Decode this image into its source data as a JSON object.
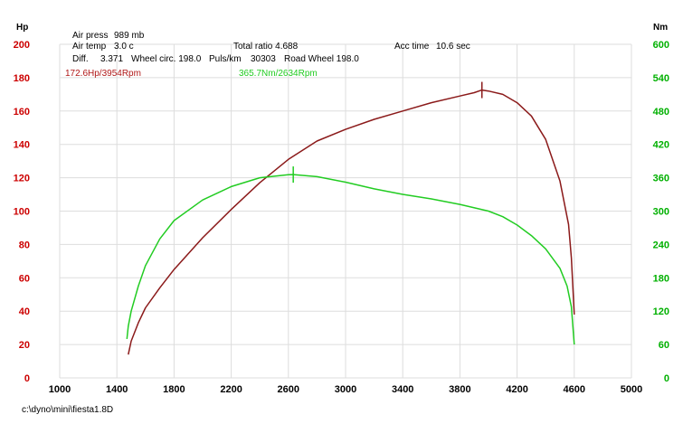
{
  "header": {
    "left_unit": "Hp",
    "right_unit": "Nm"
  },
  "info": {
    "air_press_label": "Air press",
    "air_press_value": "989 mb",
    "air_temp_label": "Air temp",
    "air_temp_value": "3.0 c",
    "total_ratio": "Total ratio 4.688",
    "acc_time_label": "Acc time",
    "acc_time_value": "10.6 sec",
    "diff_label": "Diff.",
    "diff_value": "3.371",
    "wheel_circ": "Wheel circ. 198.0",
    "puls_km_label": "Puls/km",
    "puls_km_value": "30303",
    "road_wheel": "Road Wheel 198.0"
  },
  "peaks": {
    "power_label": "172.6Hp/3954Rpm",
    "torque_label": "365.7Nm/2634Rpm"
  },
  "footer": {
    "file_path": "c:\\dyno\\mini\\fiesta1.8D"
  },
  "colors": {
    "power": "#8b1a1a",
    "torque": "#22cc22",
    "left_axis": "#cc0000",
    "right_axis": "#00b000",
    "grid": "#dddddd"
  },
  "chart_data": {
    "type": "line",
    "x_ticks": [
      1000,
      1400,
      1800,
      2200,
      2600,
      3000,
      3400,
      3800,
      4200,
      4600,
      5000
    ],
    "xlim": [
      1000,
      5000
    ],
    "ylim_left": [
      0,
      200
    ],
    "ylim_right": [
      0,
      600
    ],
    "y_ticks_left": [
      0,
      20,
      40,
      60,
      80,
      100,
      120,
      140,
      160,
      180,
      200
    ],
    "y_ticks_right": [
      0,
      60,
      120,
      180,
      240,
      300,
      360,
      420,
      480,
      540,
      600
    ],
    "series": [
      {
        "name": "Hp",
        "axis": "left",
        "color": "#8b1a1a",
        "x": [
          1480,
          1500,
          1550,
          1600,
          1700,
          1800,
          2000,
          2200,
          2400,
          2600,
          2800,
          3000,
          3200,
          3400,
          3600,
          3800,
          3900,
          3954,
          4000,
          4100,
          4200,
          4300,
          4400,
          4500,
          4560,
          4580,
          4590,
          4600
        ],
        "y": [
          14,
          22,
          33,
          42,
          54,
          65,
          84,
          101,
          117,
          131,
          142,
          149,
          155,
          160,
          165,
          169,
          171,
          172.6,
          172,
          170,
          165,
          157,
          143,
          118,
          92,
          72,
          55,
          38
        ],
        "peak": {
          "x": 3954,
          "y": 172.6
        }
      },
      {
        "name": "Nm",
        "axis": "right",
        "color": "#22cc22",
        "x": [
          1470,
          1480,
          1500,
          1550,
          1600,
          1700,
          1800,
          2000,
          2200,
          2400,
          2600,
          2634,
          2800,
          3000,
          3200,
          3400,
          3600,
          3800,
          4000,
          4100,
          4200,
          4300,
          4400,
          4500,
          4550,
          4580,
          4600
        ],
        "y": [
          70,
          93,
          120,
          165,
          202,
          250,
          283,
          320,
          344,
          360,
          365.5,
          365.7,
          362,
          352,
          340,
          330,
          322,
          312,
          300,
          290,
          275,
          256,
          232,
          197,
          165,
          128,
          60
        ],
        "peak": {
          "x": 2634,
          "y": 365.7
        }
      }
    ],
    "grid": true
  }
}
